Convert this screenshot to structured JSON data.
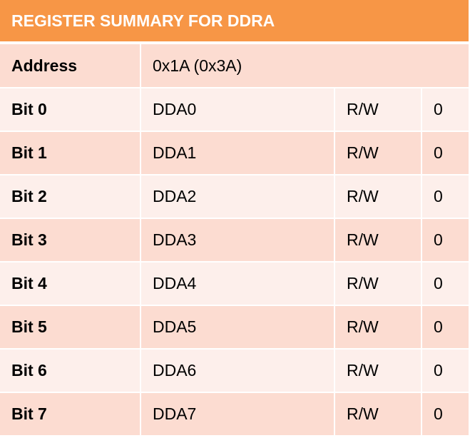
{
  "title": "REGISTER SUMMARY FOR DDRA",
  "address": {
    "label": "Address",
    "value": "0x1A (0x3A)"
  },
  "bits": [
    {
      "label": "Bit 0",
      "name": "DDA0",
      "access": "R/W",
      "reset": "0"
    },
    {
      "label": "Bit 1",
      "name": "DDA1",
      "access": "R/W",
      "reset": "0"
    },
    {
      "label": "Bit 2",
      "name": "DDA2",
      "access": "R/W",
      "reset": "0"
    },
    {
      "label": "Bit 3",
      "name": "DDA3",
      "access": "R/W",
      "reset": "0"
    },
    {
      "label": "Bit 4",
      "name": "DDA4",
      "access": "R/W",
      "reset": "0"
    },
    {
      "label": "Bit 5",
      "name": "DDA5",
      "access": "R/W",
      "reset": "0"
    },
    {
      "label": "Bit 6",
      "name": "DDA6",
      "access": "R/W",
      "reset": "0"
    },
    {
      "label": "Bit 7",
      "name": "DDA7",
      "access": "R/W",
      "reset": "0"
    }
  ],
  "colors": {
    "header": "#f79646",
    "row_dark": "#fcdcd1",
    "row_light": "#fdefeb"
  }
}
